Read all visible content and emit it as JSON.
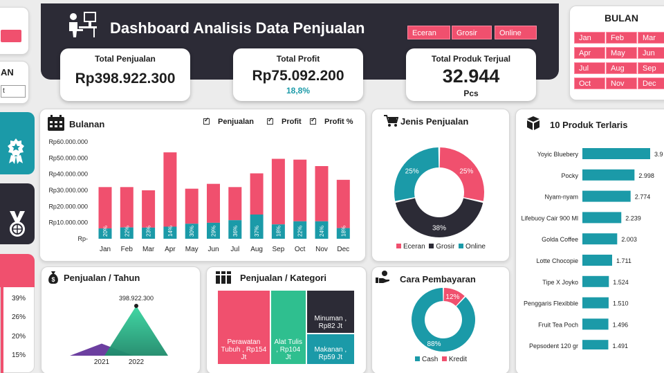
{
  "header": {
    "title": "Dashboard Analisis Data Penjualan",
    "channels": [
      "Eceran",
      "Grosir",
      "Online"
    ]
  },
  "kpis": {
    "total_penjualan": {
      "label": "Total Penjualan",
      "value": "Rp398.922.300"
    },
    "total_profit": {
      "label": "Total Profit",
      "value": "Rp75.092.200",
      "sub": "18,8%"
    },
    "total_produk": {
      "label": "Total Produk Terjual",
      "value": "32.944",
      "unit": "Pcs"
    }
  },
  "month_slicer": {
    "title": "BULAN",
    "months": [
      "Jan",
      "Feb",
      "Mar",
      "Apr",
      "May",
      "Jun",
      "Jul",
      "Aug",
      "Sep",
      "Oct",
      "Nov",
      "Dec"
    ]
  },
  "left_panel": {
    "partial_label": "AN",
    "partial_input": "t",
    "percent_labels": [
      "39%",
      "26%",
      "20%",
      "15%"
    ]
  },
  "monthly": {
    "title": "Bulanan",
    "checks": [
      "Penjualan",
      "Profit",
      "Profit %"
    ]
  },
  "jenis": {
    "title": "Jenis Penjualan",
    "legend": [
      "Eceran",
      "Grosir",
      "Online"
    ]
  },
  "top10": {
    "title": "10 Produk Terlaris"
  },
  "tahun": {
    "title": "Penjualan / Tahun"
  },
  "kategori": {
    "title": "Penjualan / Kategori"
  },
  "bayar": {
    "title": "Cara Pembayaran",
    "legend": [
      "Cash",
      "Kredit"
    ]
  },
  "colors": {
    "accent": "#f0506e",
    "teal": "#1b9aa8",
    "dark": "#2c2b36",
    "green": "#2fbf8f",
    "purple": "#6c3fa0"
  },
  "icons": {
    "header": "person-at-desk-icon",
    "bulanan": "calendar-icon",
    "jenis": "shopping-cart-icon",
    "top10": "boxes-icon",
    "tahun": "money-bag-icon",
    "kategori": "books-icon",
    "bayar": "hand-coin-icon",
    "side_1": "award-ribbon-icon",
    "side_2": "medal-icon"
  },
  "chart_data": [
    {
      "type": "bar",
      "name": "Bulanan",
      "categories": [
        "Jan",
        "Feb",
        "Mar",
        "Apr",
        "May",
        "Jun",
        "Jul",
        "Aug",
        "Sep",
        "Oct",
        "Nov",
        "Dec"
      ],
      "series": [
        {
          "name": "Penjualan",
          "values": [
            32000000,
            32000000,
            30000000,
            53500000,
            31000000,
            34000000,
            32000000,
            40500000,
            49500000,
            49000000,
            45000000,
            36500000
          ]
        },
        {
          "name": "Profit",
          "values": [
            6400000,
            7000000,
            6900000,
            7500000,
            9300000,
            9900000,
            11500000,
            15000000,
            8900000,
            10800000,
            10800000,
            6600000
          ]
        },
        {
          "name": "Profit %",
          "values": [
            "20%",
            "22%",
            "23%",
            "14%",
            "30%",
            "29%",
            "36%",
            "37%",
            "18%",
            "22%",
            "24%",
            "18%"
          ]
        }
      ],
      "ytick_labels": [
        "Rp-",
        "Rp10.000.000",
        "Rp20.000.000",
        "Rp30.000.000",
        "Rp40.000.000",
        "Rp50.000.000",
        "Rp60.000.000"
      ],
      "ylim": [
        0,
        60000000
      ]
    },
    {
      "type": "pie",
      "name": "Jenis Penjualan",
      "labels": [
        "Eceran",
        "Grosir",
        "Online"
      ],
      "values": [
        25,
        38,
        25
      ],
      "data_labels": [
        "25%",
        "38%",
        "25%"
      ]
    },
    {
      "type": "bar",
      "name": "10 Produk Terlaris",
      "orientation": "horizontal",
      "categories": [
        "Yoyic Bluebery",
        "Pocky",
        "Nyam-nyam",
        "Lifebuoy Cair 900 Ml",
        "Golda Coffee",
        "Lotte Chocopie",
        "Tipe X Joyko",
        "Penggaris Flexibble",
        "Fruit Tea Poch",
        "Pepsodent 120 gr"
      ],
      "values": [
        3.9,
        2.998,
        2.774,
        2.239,
        2.003,
        1.711,
        1.524,
        1.51,
        1.496,
        1.491
      ],
      "value_labels": [
        "3.9",
        "2.998",
        "2.774",
        "2.239",
        "2.003",
        "1.711",
        "1.524",
        "1.510",
        "1.496",
        "1.491"
      ]
    },
    {
      "type": "area",
      "name": "Penjualan / Tahun",
      "categories": [
        "2021",
        "2022"
      ],
      "values": [
        97000000,
        398922300
      ],
      "data_labels": [
        "",
        "398.922.300"
      ]
    },
    {
      "type": "heatmap",
      "name": "Penjualan / Kategori",
      "labels": [
        "Perawatan Tubuh , Rp154 Jt",
        "Alat Tulis , Rp104 Jt",
        "Minuman , Rp82 Jt",
        "Makanan , Rp59 Jt"
      ],
      "values": [
        154,
        104,
        82,
        59
      ]
    },
    {
      "type": "pie",
      "name": "Cara Pembayaran",
      "labels": [
        "Cash",
        "Kredit"
      ],
      "values": [
        88,
        12
      ],
      "data_labels": [
        "88%",
        "12%"
      ]
    }
  ]
}
